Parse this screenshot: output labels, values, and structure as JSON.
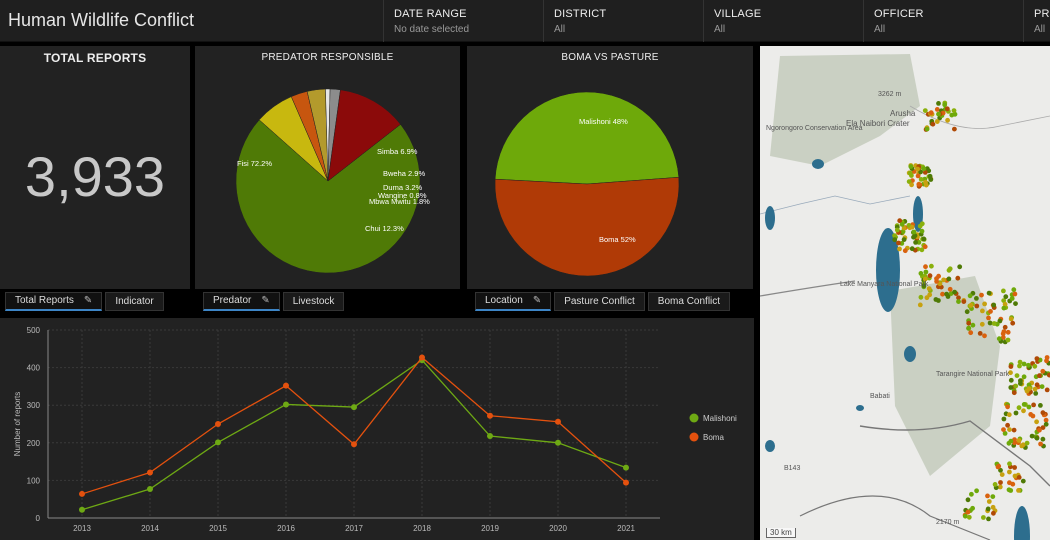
{
  "header": {
    "title": "Human Wildlife Conflict",
    "filters": [
      {
        "label": "DATE RANGE",
        "value": "No date selected"
      },
      {
        "label": "DISTRICT",
        "value": "All"
      },
      {
        "label": "VILLAGE",
        "value": "All"
      },
      {
        "label": "OFFICER",
        "value": "All"
      },
      {
        "label": "PRE",
        "value": "All"
      }
    ]
  },
  "total_reports": {
    "title": "TOTAL REPORTS",
    "value": "3,933"
  },
  "predator_panel": {
    "title": "PREDATOR RESPONSIBLE"
  },
  "boma_panel": {
    "title": "BOMA VS PASTURE"
  },
  "tabs": {
    "total": [
      "Total Reports",
      "Indicator"
    ],
    "predator": [
      "Predator",
      "Livestock"
    ],
    "location": [
      "Location",
      "Pasture Conflict",
      "Boma Conflict"
    ]
  },
  "chart_data": [
    {
      "type": "pie",
      "title": "PREDATOR RESPONSIBLE",
      "slices": [
        {
          "label": "Fisi 72.2%",
          "value": 72.2,
          "color": "#4f7a06"
        },
        {
          "label": "Simba 6.9%",
          "value": 6.9,
          "color": "#c8b80f"
        },
        {
          "label": "Bweha 2.9%",
          "value": 2.9,
          "color": "#c7560f"
        },
        {
          "label": "Duma 3.2%",
          "value": 3.2,
          "color": "#b39a2c"
        },
        {
          "label": "Wangine 0.8%",
          "value": 0.8,
          "color": "#e6e6e6"
        },
        {
          "label": "Mbwa Mwitu 1.8%",
          "value": 1.8,
          "color": "#8c8c8c"
        },
        {
          "label": "Chui 12.3%",
          "value": 12.3,
          "color": "#8b0a0a"
        }
      ]
    },
    {
      "type": "pie",
      "title": "BOMA VS PASTURE",
      "slices": [
        {
          "label": "Malishoni 48%",
          "value": 48,
          "color": "#6ea90a"
        },
        {
          "label": "Boma 52%",
          "value": 52,
          "color": "#b03a06"
        }
      ]
    },
    {
      "type": "line",
      "ylabel": "Number of reports",
      "ylim": [
        0,
        500
      ],
      "yticks": [
        0,
        100,
        200,
        300,
        400,
        500
      ],
      "categories": [
        "2013",
        "2014",
        "2015",
        "2016",
        "2017",
        "2018",
        "2019",
        "2020",
        "2021"
      ],
      "series": [
        {
          "name": "Malishoni",
          "color": "#6ea914",
          "values": [
            22,
            77,
            201,
            302,
            295,
            420,
            218,
            200,
            134
          ]
        },
        {
          "name": "Boma",
          "color": "#e4510e",
          "values": [
            64,
            121,
            250,
            352,
            196,
            427,
            272,
            256,
            94
          ]
        }
      ],
      "legend": "right",
      "grid": true
    }
  ],
  "map": {
    "labels": [
      "3262 m",
      "Arusha",
      "Ela Naibori Crater",
      "Ngorongoro Conservation Area",
      "Lake Manyara National Park",
      "Tarangire National Park",
      "Babati",
      "B143",
      "2170 m"
    ],
    "scale": "30 km"
  }
}
